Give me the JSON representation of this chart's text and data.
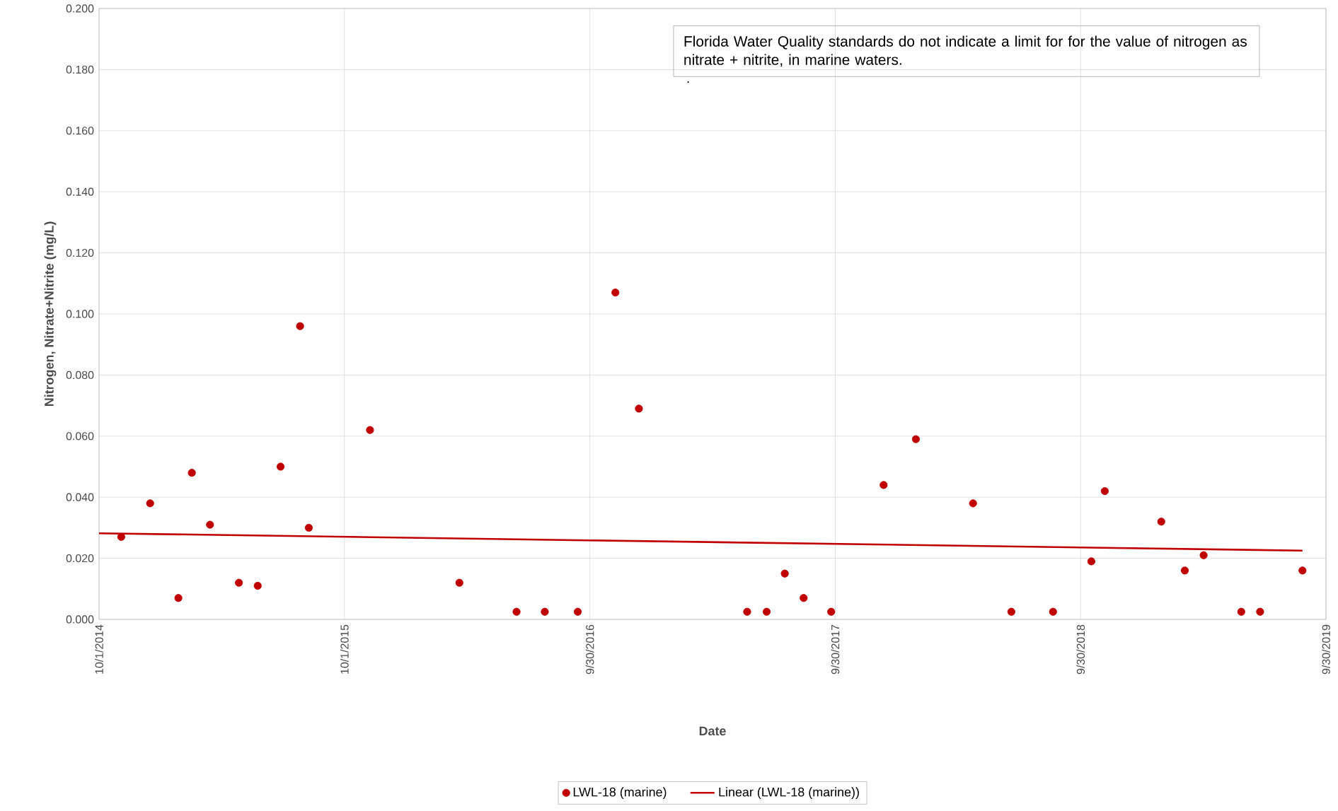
{
  "chart_data": {
    "type": "scatter",
    "xlabel": "Date",
    "ylabel": "Nitrogen, Nitrate+Nitrite (mg/L)",
    "annotations": [
      "Florida Water Quality standards do not indicate a limit  for for the value of nitrogen as nitrate + nitrite, in marine waters.",
      "."
    ],
    "xlim": [
      "2014-10-01",
      "2019-09-30"
    ],
    "xticks": [
      {
        "value": "2014-10-01",
        "label": "10/1/2014"
      },
      {
        "value": "2015-10-01",
        "label": "10/1/2015"
      },
      {
        "value": "2016-09-30",
        "label": "9/30/2016"
      },
      {
        "value": "2017-09-30",
        "label": "9/30/2017"
      },
      {
        "value": "2018-09-30",
        "label": "9/30/2018"
      },
      {
        "value": "2019-09-30",
        "label": "9/30/2019"
      }
    ],
    "ylim": [
      0,
      0.2
    ],
    "yticks": [
      {
        "value": 0,
        "label": "0.000"
      },
      {
        "value": 0.02,
        "label": "0.020"
      },
      {
        "value": 0.04,
        "label": "0.040"
      },
      {
        "value": 0.06,
        "label": "0.060"
      },
      {
        "value": 0.08,
        "label": "0.080"
      },
      {
        "value": 0.1,
        "label": "0.100"
      },
      {
        "value": 0.12,
        "label": "0.120"
      },
      {
        "value": 0.14,
        "label": "0.140"
      },
      {
        "value": 0.16,
        "label": "0.160"
      },
      {
        "value": 0.18,
        "label": "0.180"
      },
      {
        "value": 0.2,
        "label": "0.200"
      }
    ],
    "grid": true,
    "legend": "bottom",
    "series": [
      {
        "name": "LWL-18 (marine)",
        "marker": "circle",
        "color": "#c00000",
        "x": [
          "2014-11-03",
          "2014-12-16",
          "2015-01-27",
          "2015-02-16",
          "2015-03-15",
          "2015-04-27",
          "2015-05-25",
          "2015-06-28",
          "2015-07-27",
          "2015-08-09",
          "2015-11-08",
          "2016-03-20",
          "2016-06-13",
          "2016-07-25",
          "2016-09-12",
          "2016-11-07",
          "2016-12-12",
          "2017-05-22",
          "2017-06-20",
          "2017-07-17",
          "2017-08-14",
          "2017-09-24",
          "2017-12-11",
          "2018-01-28",
          "2018-04-23",
          "2018-06-19",
          "2018-08-20",
          "2018-10-16",
          "2018-11-05",
          "2019-01-28",
          "2019-03-04",
          "2019-04-01",
          "2019-05-27",
          "2019-06-24",
          "2019-08-26"
        ],
        "values": [
          0.027,
          0.038,
          0.007,
          0.048,
          0.031,
          0.012,
          0.011,
          0.05,
          0.096,
          0.03,
          0.062,
          0.012,
          0.0025,
          0.0025,
          0.0025,
          0.107,
          0.069,
          0.0025,
          0.0025,
          0.015,
          0.007,
          0.0025,
          0.044,
          0.059,
          0.038,
          0.0025,
          0.0025,
          0.019,
          0.042,
          0.032,
          0.016,
          0.021,
          0.0025,
          0.0025,
          0.016
        ]
      },
      {
        "name": "Linear (LWL-18 (marine))",
        "type": "line",
        "color": "#c00000",
        "x": [
          "2014-10-01",
          "2019-08-26"
        ],
        "values": [
          0.0282,
          0.0225
        ]
      }
    ]
  }
}
